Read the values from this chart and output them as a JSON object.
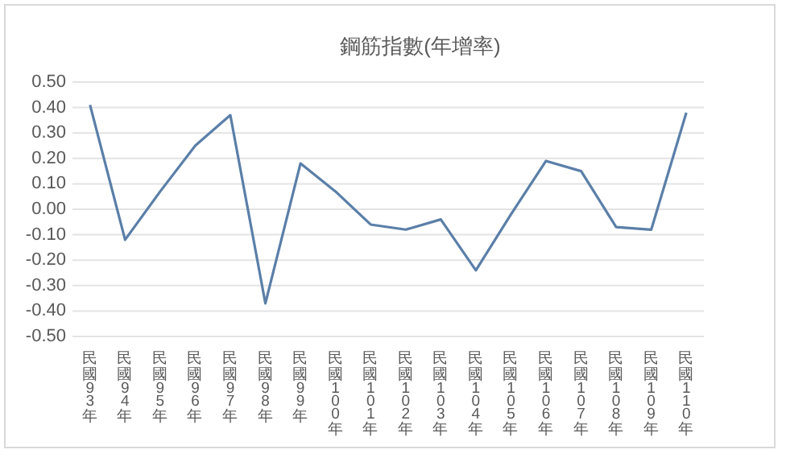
{
  "chart_data": {
    "type": "line",
    "title": "鋼筋指數(年增率)",
    "categories": [
      "民國93年",
      "民國94年",
      "民國95年",
      "民國96年",
      "民國97年",
      "民國98年",
      "民國99年",
      "民國100年",
      "民國101年",
      "民國102年",
      "民國103年",
      "民國104年",
      "民國105年",
      "民國106年",
      "民國107年",
      "民國108年",
      "民國109年",
      "民國110年"
    ],
    "series": [
      {
        "color": "#5a7fa8",
        "values": [
          0.41,
          -0.12,
          0.07,
          0.25,
          0.37,
          -0.37,
          0.18,
          0.07,
          -0.06,
          -0.08,
          -0.04,
          -0.24,
          -0.02,
          0.19,
          0.15,
          -0.07,
          -0.08,
          0.38
        ]
      }
    ],
    "ylim": [
      -0.5,
      0.5
    ],
    "yticks": [
      {
        "value": -0.5,
        "label": "-0.50"
      },
      {
        "value": -0.4,
        "label": "-0.40"
      },
      {
        "value": -0.3,
        "label": "-0.30"
      },
      {
        "value": -0.2,
        "label": "-0.20"
      },
      {
        "value": -0.1,
        "label": "-0.10"
      },
      {
        "value": 0,
        "label": "0.00"
      },
      {
        "value": 0.1,
        "label": "0.10"
      },
      {
        "value": 0.2,
        "label": "0.20"
      },
      {
        "value": 0.3,
        "label": "0.30"
      },
      {
        "value": 0.4,
        "label": "0.40"
      },
      {
        "value": 0.5,
        "label": "0.50"
      }
    ],
    "grid": "y",
    "marker": "none",
    "line_style": "solid"
  }
}
